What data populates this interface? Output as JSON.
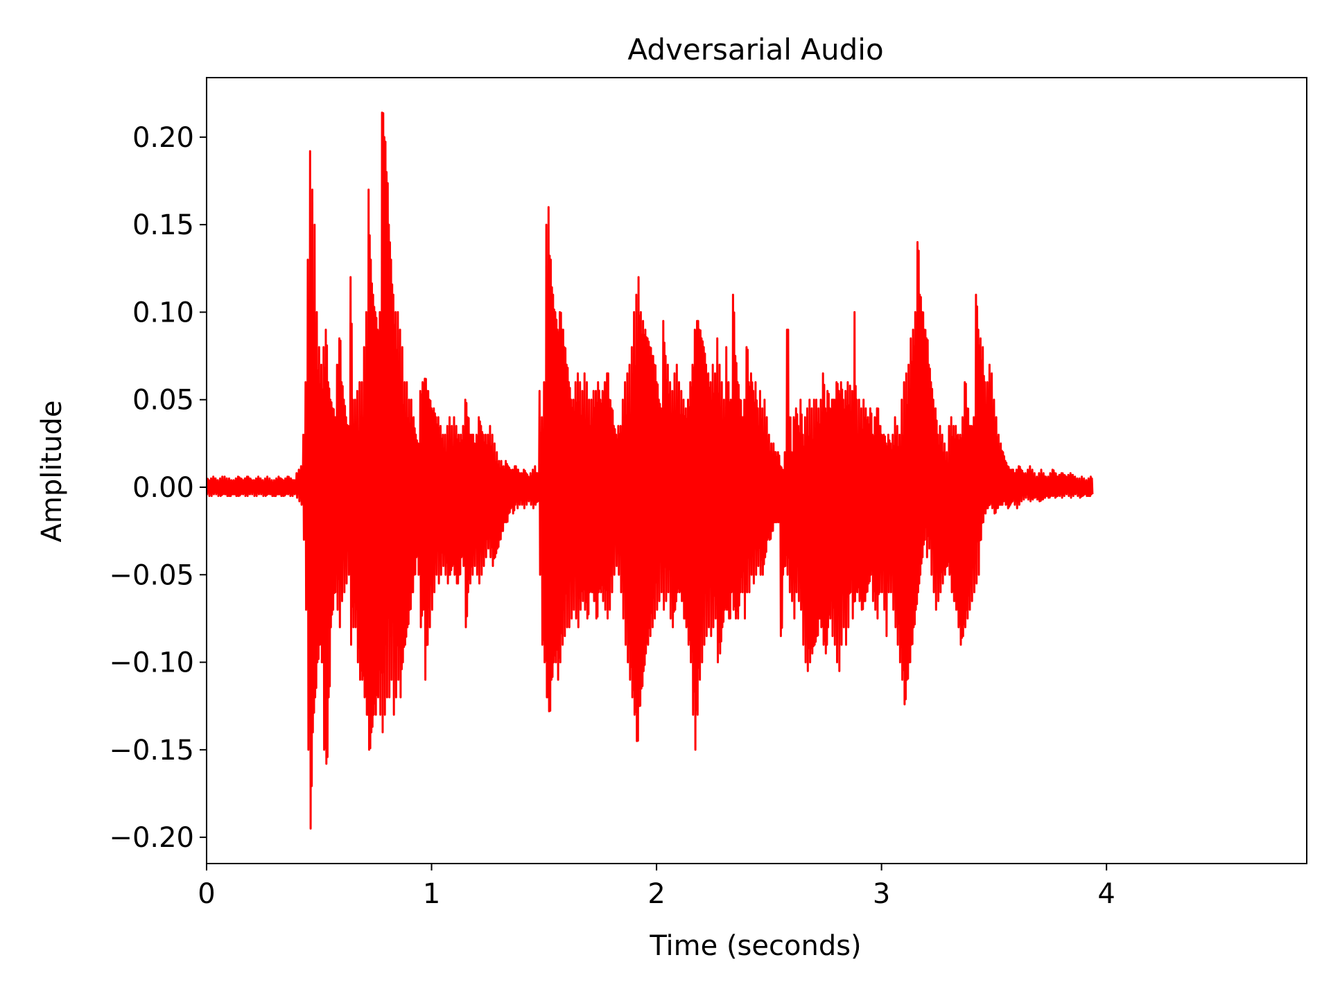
{
  "chart_data": {
    "type": "line",
    "title": "Adversarial Audio",
    "xlabel": "Time (seconds)",
    "ylabel": "Amplitude",
    "xlim": [
      0,
      4.89
    ],
    "ylim": [
      -0.215,
      0.234
    ],
    "x_ticks": [
      0,
      1,
      2,
      3,
      4
    ],
    "x_tick_labels": [
      "0",
      "1",
      "2",
      "3",
      "4"
    ],
    "y_ticks": [
      -0.2,
      -0.15,
      -0.1,
      -0.05,
      0.0,
      0.05,
      0.1,
      0.15,
      0.2
    ],
    "y_tick_labels": [
      "−0.20",
      "−0.15",
      "−0.10",
      "−0.05",
      "0.00",
      "0.05",
      "0.10",
      "0.15",
      "0.20"
    ],
    "grid": false,
    "legend": "none",
    "series": [
      {
        "color": "#ff0000",
        "x_step": 0.01,
        "y_max": [
          0.005,
          0.004,
          0.005,
          0.006,
          0.005,
          0.004,
          0.005,
          0.006,
          0.006,
          0.005,
          0.005,
          0.004,
          0.004,
          0.005,
          0.006,
          0.005,
          0.004,
          0.005,
          0.006,
          0.005,
          0.004,
          0.004,
          0.005,
          0.006,
          0.005,
          0.004,
          0.005,
          0.006,
          0.005,
          0.004,
          0.004,
          0.005,
          0.006,
          0.005,
          0.004,
          0.005,
          0.006,
          0.005,
          0.004,
          0.004,
          0.008,
          0.01,
          0.012,
          0.03,
          0.06,
          0.13,
          0.192,
          0.17,
          0.15,
          0.1,
          0.08,
          0.07,
          0.08,
          0.09,
          0.06,
          0.05,
          0.045,
          0.04,
          0.07,
          0.085,
          0.06,
          0.05,
          0.04,
          0.035,
          0.12,
          0.05,
          0.05,
          0.055,
          0.06,
          0.06,
          0.08,
          0.1,
          0.17,
          0.13,
          0.11,
          0.1,
          0.09,
          0.1,
          0.214,
          0.2,
          0.18,
          0.15,
          0.13,
          0.11,
          0.1,
          0.1,
          0.09,
          0.08,
          0.06,
          0.06,
          0.05,
          0.05,
          0.04,
          0.03,
          0.025,
          0.055,
          0.06,
          0.062,
          0.055,
          0.05,
          0.045,
          0.045,
          0.04,
          0.04,
          0.035,
          0.03,
          0.03,
          0.035,
          0.04,
          0.035,
          0.04,
          0.035,
          0.03,
          0.03,
          0.035,
          0.05,
          0.04,
          0.03,
          0.03,
          0.025,
          0.03,
          0.04,
          0.035,
          0.03,
          0.03,
          0.03,
          0.035,
          0.03,
          0.025,
          0.02,
          0.015,
          0.015,
          0.012,
          0.015,
          0.012,
          0.01,
          0.01,
          0.012,
          0.01,
          0.008,
          0.008,
          0.01,
          0.008,
          0.006,
          0.008,
          0.01,
          0.012,
          0.008,
          0.055,
          0.04,
          0.06,
          0.15,
          0.16,
          0.13,
          0.11,
          0.1,
          0.09,
          0.1,
          0.09,
          0.08,
          0.07,
          0.06,
          0.05,
          0.05,
          0.06,
          0.065,
          0.06,
          0.055,
          0.065,
          0.06,
          0.05,
          0.05,
          0.055,
          0.055,
          0.06,
          0.05,
          0.055,
          0.06,
          0.065,
          0.05,
          0.045,
          0.035,
          0.03,
          0.035,
          0.035,
          0.05,
          0.06,
          0.065,
          0.07,
          0.08,
          0.1,
          0.11,
          0.12,
          0.1,
          0.095,
          0.09,
          0.085,
          0.08,
          0.075,
          0.07,
          0.06,
          0.05,
          0.045,
          0.095,
          0.075,
          0.07,
          0.06,
          0.055,
          0.065,
          0.07,
          0.06,
          0.055,
          0.05,
          0.045,
          0.05,
          0.06,
          0.07,
          0.09,
          0.095,
          0.09,
          0.085,
          0.08,
          0.07,
          0.065,
          0.06,
          0.07,
          0.065,
          0.085,
          0.07,
          0.06,
          0.05,
          0.08,
          0.06,
          0.05,
          0.11,
          0.075,
          0.06,
          0.05,
          0.04,
          0.05,
          0.08,
          0.06,
          0.065,
          0.055,
          0.06,
          0.045,
          0.055,
          0.045,
          0.05,
          0.04,
          0.03,
          0.025,
          0.025,
          0.02,
          0.02,
          0.012,
          0.01,
          0.02,
          0.09,
          0.04,
          0.02,
          0.04,
          0.045,
          0.035,
          0.05,
          0.03,
          0.04,
          0.045,
          0.05,
          0.045,
          0.05,
          0.05,
          0.045,
          0.05,
          0.065,
          0.045,
          0.055,
          0.045,
          0.05,
          0.05,
          0.06,
          0.055,
          0.06,
          0.05,
          0.055,
          0.06,
          0.058,
          0.055,
          0.1,
          0.05,
          0.05,
          0.045,
          0.05,
          0.045,
          0.04,
          0.045,
          0.03,
          0.04,
          0.045,
          0.035,
          0.03,
          0.03,
          0.025,
          0.03,
          0.025,
          0.03,
          0.04,
          0.035,
          0.03,
          0.05,
          0.06,
          0.065,
          0.07,
          0.085,
          0.09,
          0.1,
          0.14,
          0.11,
          0.1,
          0.09,
          0.085,
          0.07,
          0.06,
          0.05,
          0.045,
          0.03,
          0.035,
          0.03,
          0.025,
          0.02,
          0.035,
          0.04,
          0.035,
          0.035,
          0.03,
          0.03,
          0.04,
          0.06,
          0.045,
          0.035,
          0.035,
          0.04,
          0.11,
          0.09,
          0.085,
          0.08,
          0.06,
          0.06,
          0.07,
          0.065,
          0.05,
          0.04,
          0.03,
          0.025,
          0.02,
          0.015,
          0.012,
          0.01,
          0.01,
          0.008,
          0.01,
          0.012,
          0.01,
          0.008,
          0.008,
          0.01,
          0.012,
          0.01,
          0.008,
          0.006,
          0.008,
          0.01,
          0.008,
          0.006,
          0.006,
          0.008,
          0.01,
          0.008,
          0.006,
          0.007,
          0.008,
          0.007,
          0.006,
          0.007,
          0.008,
          0.007,
          0.006,
          0.005,
          0.005,
          0.006,
          0.005,
          0.004,
          0.005,
          0.006,
          0.005,
          0.004,
          0.005,
          0.006,
          0.005,
          0.004,
          0.005,
          0.006,
          0.005,
          0.004,
          0.005,
          0.006,
          0.005,
          0.005
        ],
        "y_min": [
          -0.004,
          -0.005,
          -0.005,
          -0.004,
          -0.004,
          -0.005,
          -0.005,
          -0.004,
          -0.004,
          -0.005,
          -0.005,
          -0.004,
          -0.004,
          -0.005,
          -0.005,
          -0.004,
          -0.004,
          -0.005,
          -0.005,
          -0.004,
          -0.004,
          -0.005,
          -0.005,
          -0.004,
          -0.004,
          -0.005,
          -0.005,
          -0.004,
          -0.004,
          -0.005,
          -0.005,
          -0.004,
          -0.004,
          -0.005,
          -0.005,
          -0.004,
          -0.004,
          -0.005,
          -0.005,
          -0.004,
          -0.006,
          -0.008,
          -0.01,
          -0.03,
          -0.07,
          -0.15,
          -0.195,
          -0.14,
          -0.12,
          -0.1,
          -0.09,
          -0.1,
          -0.15,
          -0.158,
          -0.12,
          -0.08,
          -0.07,
          -0.06,
          -0.07,
          -0.08,
          -0.065,
          -0.06,
          -0.055,
          -0.05,
          -0.09,
          -0.08,
          -0.08,
          -0.1,
          -0.11,
          -0.11,
          -0.12,
          -0.13,
          -0.15,
          -0.14,
          -0.13,
          -0.13,
          -0.12,
          -0.13,
          -0.14,
          -0.13,
          -0.12,
          -0.12,
          -0.11,
          -0.13,
          -0.12,
          -0.11,
          -0.12,
          -0.1,
          -0.09,
          -0.08,
          -0.07,
          -0.06,
          -0.05,
          -0.04,
          -0.05,
          -0.08,
          -0.07,
          -0.11,
          -0.09,
          -0.08,
          -0.07,
          -0.06,
          -0.05,
          -0.055,
          -0.05,
          -0.045,
          -0.05,
          -0.055,
          -0.05,
          -0.045,
          -0.05,
          -0.055,
          -0.05,
          -0.04,
          -0.045,
          -0.08,
          -0.06,
          -0.055,
          -0.05,
          -0.045,
          -0.05,
          -0.055,
          -0.05,
          -0.045,
          -0.04,
          -0.035,
          -0.04,
          -0.045,
          -0.04,
          -0.035,
          -0.03,
          -0.025,
          -0.02,
          -0.02,
          -0.015,
          -0.012,
          -0.015,
          -0.01,
          -0.012,
          -0.01,
          -0.01,
          -0.012,
          -0.01,
          -0.008,
          -0.01,
          -0.012,
          -0.01,
          -0.008,
          -0.05,
          -0.09,
          -0.1,
          -0.12,
          -0.128,
          -0.11,
          -0.1,
          -0.1,
          -0.11,
          -0.1,
          -0.09,
          -0.085,
          -0.08,
          -0.08,
          -0.075,
          -0.07,
          -0.075,
          -0.08,
          -0.07,
          -0.065,
          -0.07,
          -0.075,
          -0.06,
          -0.06,
          -0.065,
          -0.075,
          -0.06,
          -0.06,
          -0.065,
          -0.07,
          -0.075,
          -0.07,
          -0.06,
          -0.05,
          -0.045,
          -0.05,
          -0.06,
          -0.075,
          -0.09,
          -0.1,
          -0.11,
          -0.12,
          -0.13,
          -0.145,
          -0.125,
          -0.115,
          -0.105,
          -0.095,
          -0.09,
          -0.085,
          -0.08,
          -0.075,
          -0.07,
          -0.065,
          -0.06,
          -0.07,
          -0.065,
          -0.06,
          -0.075,
          -0.08,
          -0.07,
          -0.06,
          -0.06,
          -0.065,
          -0.075,
          -0.08,
          -0.09,
          -0.1,
          -0.13,
          -0.15,
          -0.13,
          -0.11,
          -0.1,
          -0.09,
          -0.085,
          -0.08,
          -0.085,
          -0.08,
          -0.075,
          -0.1,
          -0.095,
          -0.08,
          -0.07,
          -0.07,
          -0.075,
          -0.06,
          -0.07,
          -0.075,
          -0.075,
          -0.06,
          -0.06,
          -0.075,
          -0.06,
          -0.06,
          -0.05,
          -0.055,
          -0.05,
          -0.045,
          -0.05,
          -0.05,
          -0.04,
          -0.03,
          -0.03,
          -0.025,
          -0.02,
          -0.02,
          -0.02,
          -0.085,
          -0.05,
          -0.045,
          -0.05,
          -0.06,
          -0.065,
          -0.075,
          -0.06,
          -0.065,
          -0.07,
          -0.09,
          -0.1,
          -0.105,
          -0.1,
          -0.095,
          -0.09,
          -0.085,
          -0.075,
          -0.08,
          -0.09,
          -0.095,
          -0.08,
          -0.075,
          -0.085,
          -0.09,
          -0.1,
          -0.105,
          -0.09,
          -0.08,
          -0.09,
          -0.08,
          -0.06,
          -0.075,
          -0.065,
          -0.06,
          -0.065,
          -0.07,
          -0.065,
          -0.06,
          -0.055,
          -0.05,
          -0.065,
          -0.07,
          -0.075,
          -0.06,
          -0.06,
          -0.07,
          -0.085,
          -0.06,
          -0.06,
          -0.07,
          -0.08,
          -0.09,
          -0.1,
          -0.11,
          -0.124,
          -0.11,
          -0.1,
          -0.09,
          -0.08,
          -0.07,
          -0.06,
          -0.05,
          -0.04,
          -0.03,
          -0.04,
          -0.035,
          -0.05,
          -0.06,
          -0.07,
          -0.065,
          -0.06,
          -0.055,
          -0.05,
          -0.045,
          -0.05,
          -0.06,
          -0.065,
          -0.07,
          -0.08,
          -0.09,
          -0.085,
          -0.08,
          -0.075,
          -0.07,
          -0.065,
          -0.06,
          -0.055,
          -0.05,
          -0.03,
          -0.02,
          -0.015,
          -0.012,
          -0.01,
          -0.012,
          -0.015,
          -0.012,
          -0.01,
          -0.01,
          -0.008,
          -0.01,
          -0.012,
          -0.01,
          -0.008,
          -0.01,
          -0.012,
          -0.01,
          -0.008,
          -0.007,
          -0.006,
          -0.007,
          -0.008,
          -0.007,
          -0.006,
          -0.007,
          -0.008,
          -0.007,
          -0.006,
          -0.005,
          -0.006,
          -0.005,
          -0.005,
          -0.006,
          -0.005,
          -0.005,
          -0.006,
          -0.005,
          -0.004,
          -0.005,
          -0.006,
          -0.005,
          -0.004,
          -0.005,
          -0.006,
          -0.005,
          -0.004,
          -0.005,
          -0.005,
          -0.004
        ]
      }
    ]
  }
}
